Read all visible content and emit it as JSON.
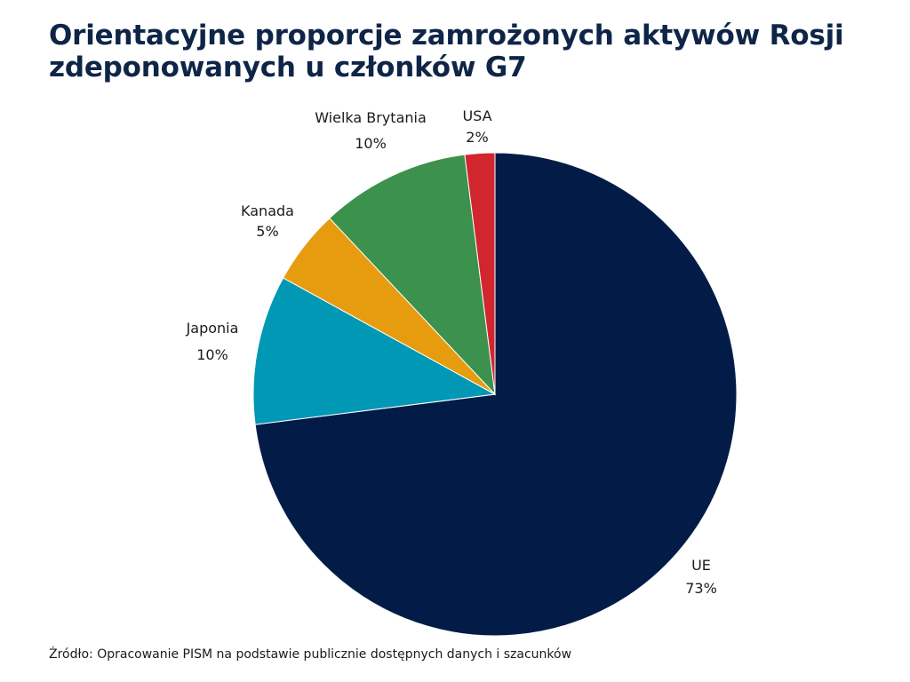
{
  "chart_data": {
    "type": "pie",
    "title": "Orientacyjne proporcje zamrożonych aktywów Rosji zdeponowanych u członków G7",
    "slices": [
      {
        "label": "UE",
        "value": 73,
        "value_label": "73%",
        "color": "#031c47"
      },
      {
        "label": "Japonia",
        "value": 10,
        "value_label": "10%",
        "color": "#0098b4"
      },
      {
        "label": "Kanada",
        "value": 5,
        "value_label": "5%",
        "color": "#e79c10"
      },
      {
        "label": "Wielka Brytania",
        "value": 10,
        "value_label": "10%",
        "color": "#3c914d"
      },
      {
        "label": "USA",
        "value": 2,
        "value_label": "2%",
        "color": "#d2262f"
      }
    ],
    "start": "12 o'clock",
    "direction": "clockwise",
    "source": "Źródło: Opracowanie PISM na podstawie publicznie dostępnych danych i szacunków"
  }
}
